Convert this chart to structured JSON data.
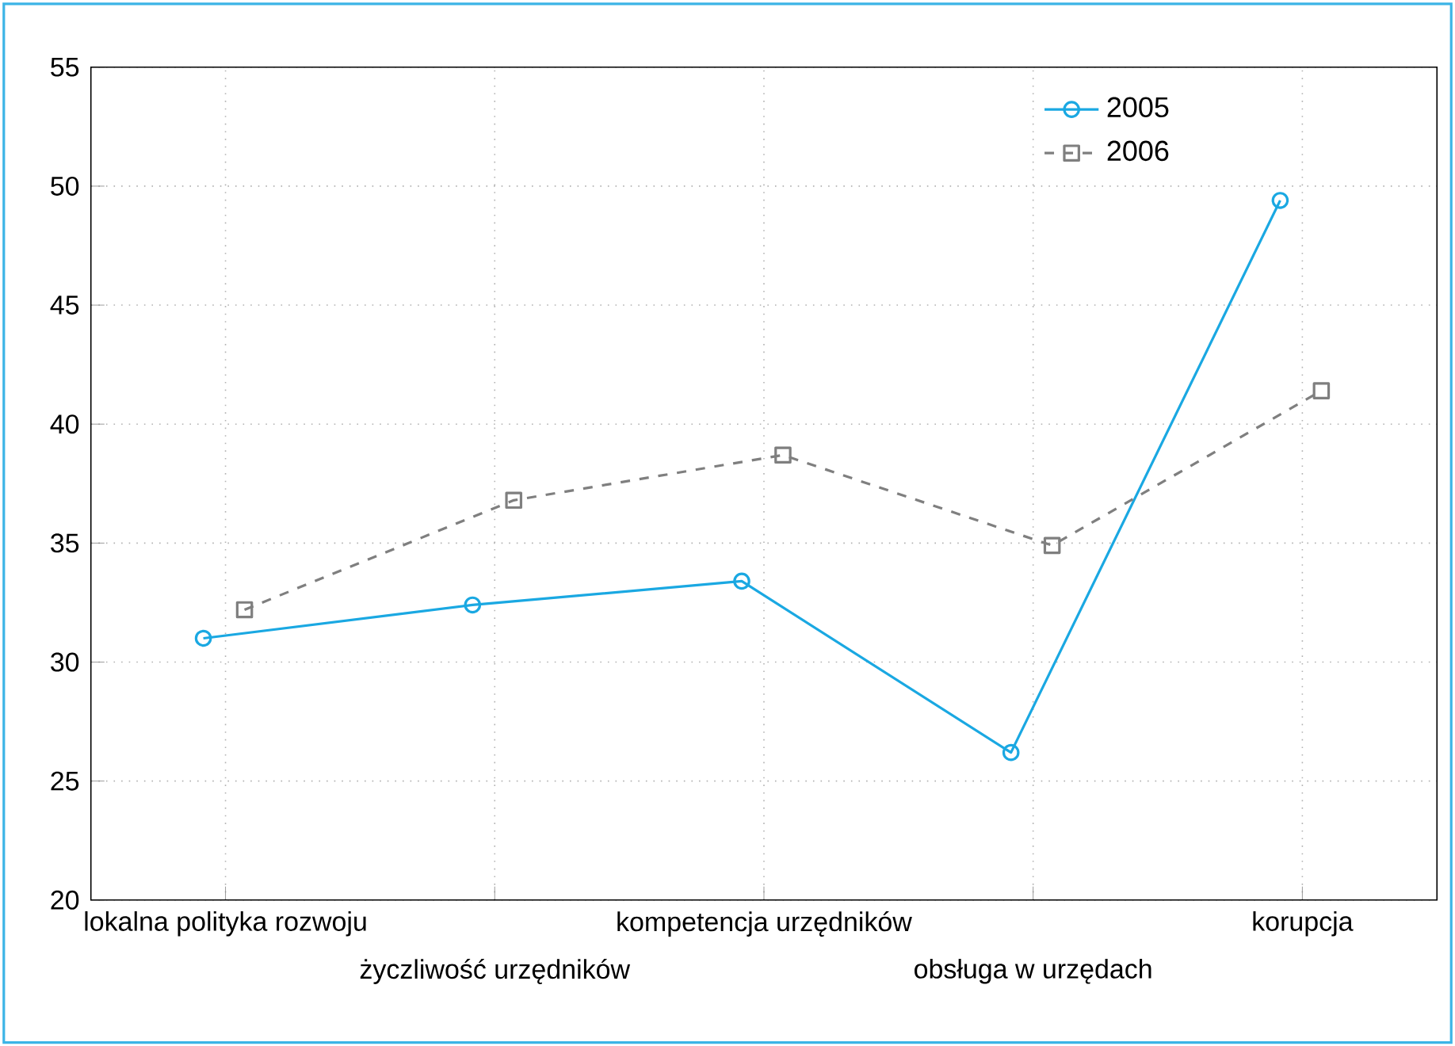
{
  "chart_data": {
    "type": "line",
    "categories": [
      "lokalna polityka rozwoju",
      "życzliwość urzędników",
      "kompetencja urzędników",
      "obsługa w urzędach",
      "korupcja"
    ],
    "series": [
      {
        "name": "2005",
        "color": "#1aa8e2",
        "values": [
          31.0,
          32.4,
          33.4,
          26.2,
          49.4
        ],
        "marker": "circle",
        "line_style": "solid"
      },
      {
        "name": "2006",
        "color": "#7f7f7f",
        "values": [
          32.2,
          36.8,
          38.7,
          34.9,
          41.4
        ],
        "marker": "square",
        "line_style": "dashed"
      }
    ],
    "ylim": [
      20,
      55
    ],
    "yticks": [
      20,
      25,
      30,
      35,
      40,
      45,
      50,
      55
    ],
    "grid": true,
    "legend": "top right"
  }
}
